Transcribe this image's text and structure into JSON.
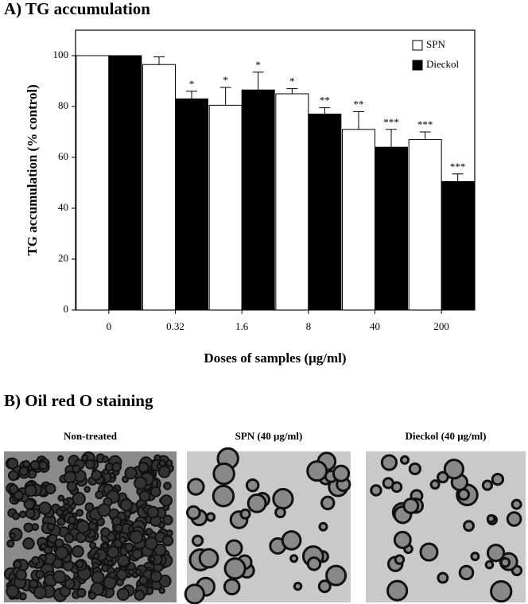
{
  "chart_data": {
    "type": "bar",
    "title": "A) TG accumulation",
    "x_label": "Doses of samples (μg/ml)",
    "y_label": "TG accumulation (% control)",
    "categories": [
      "0",
      "0.32",
      "1.6",
      "8",
      "40",
      "200"
    ],
    "series": [
      {
        "name": "SPN",
        "color": "#ffffff",
        "values": [
          100,
          96.5,
          80.5,
          85,
          71,
          67
        ],
        "errors": [
          0,
          3,
          7,
          2,
          7,
          3
        ],
        "significance": [
          null,
          null,
          "*",
          "*",
          "**",
          "***"
        ]
      },
      {
        "name": "Dieckol",
        "color": "#000000",
        "values": [
          100,
          83,
          86.5,
          77,
          64,
          50.5
        ],
        "errors": [
          0,
          3,
          7,
          2.5,
          7,
          3
        ],
        "significance": [
          null,
          "*",
          "*",
          "**",
          "***",
          "***"
        ]
      }
    ],
    "ylim": [
      0,
      110
    ],
    "yticks": [
      0,
      20,
      40,
      60,
      80,
      100
    ],
    "legend": "upper right"
  },
  "staining": {
    "title": "B) Oil red O staining",
    "panels": [
      "Non-treated",
      "SPN (40 μg/ml)",
      "Dieckol (40 μg/ml)"
    ]
  }
}
